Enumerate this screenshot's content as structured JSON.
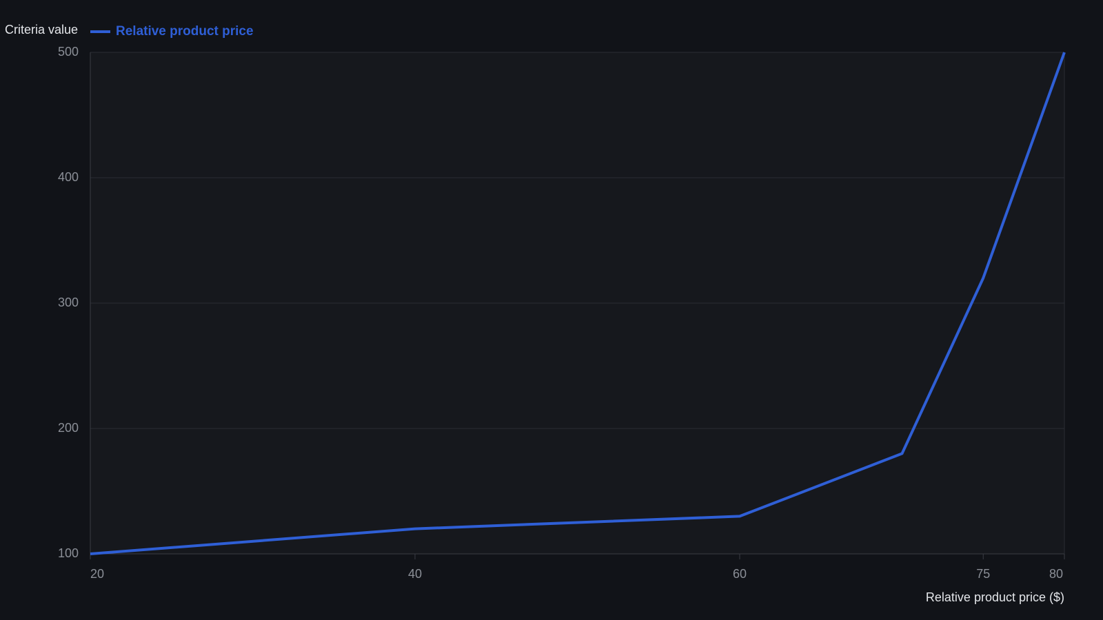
{
  "chart_data": {
    "type": "line",
    "y_label": "Criteria value",
    "x_label": "Relative product price ($)",
    "x": [
      20,
      40,
      60,
      70,
      75,
      80
    ],
    "series": [
      {
        "name": "Relative product price",
        "color": "#2f5fd6",
        "values": [
          100,
          120,
          130,
          180,
          320,
          500
        ]
      }
    ],
    "xlim": [
      20,
      80
    ],
    "xticks": [
      20,
      40,
      60,
      75,
      80
    ],
    "ylim": [
      100,
      500
    ],
    "yticks": [
      100,
      200,
      300,
      400,
      500
    ],
    "grid": true
  }
}
